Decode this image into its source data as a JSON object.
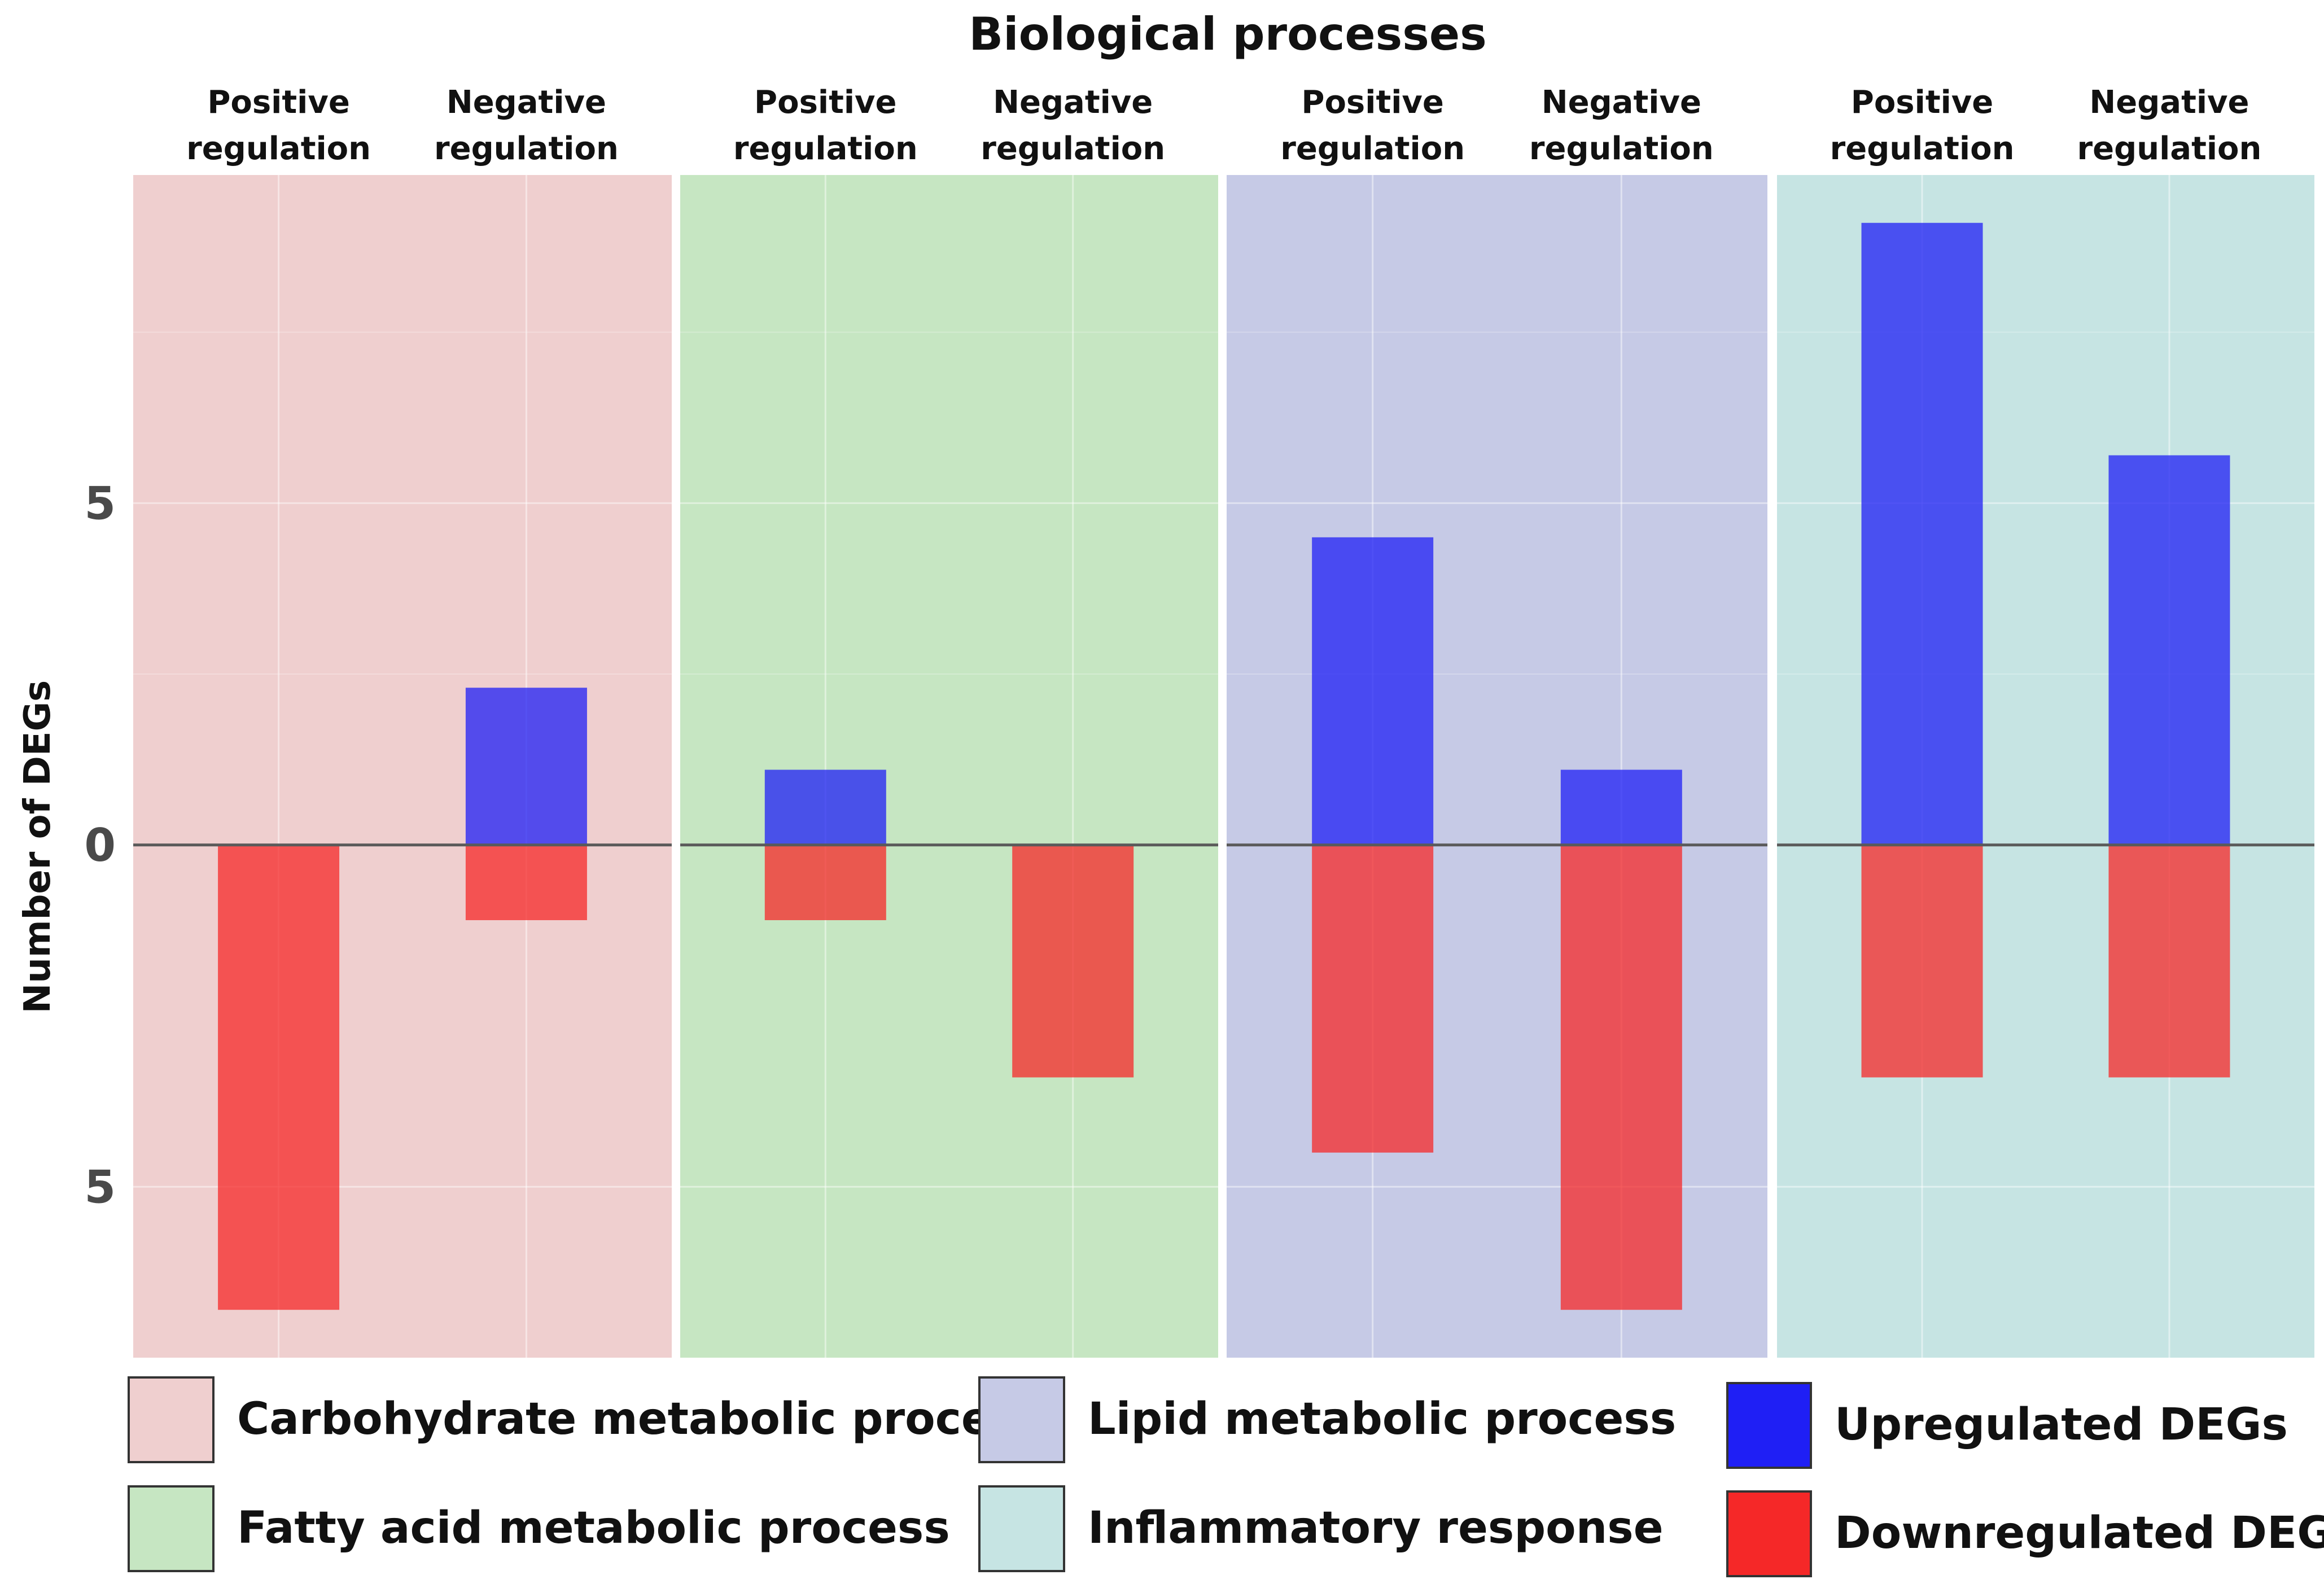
{
  "chart_data": {
    "type": "bar",
    "title": "Biological processes",
    "ylabel": "Number of DEGs",
    "xlabel": "",
    "ylim": [
      -7.5,
      9.8
    ],
    "yticks": [
      {
        "value": 5,
        "label": "5"
      },
      {
        "value": 0,
        "label": "0"
      },
      {
        "value": -5,
        "label": "5"
      }
    ],
    "groups": [
      {
        "name": "Carbohydrate metabolic process",
        "color": "#efcfcf",
        "categories": [
          {
            "line1": "Positive",
            "line2": "regulation",
            "up": 0,
            "down": 6.8
          },
          {
            "line1": "Negative",
            "line2": "regulation",
            "up": 2.3,
            "down": 1.1
          }
        ]
      },
      {
        "name": "Fatty acid metabolic process",
        "color": "#c6e6c2",
        "categories": [
          {
            "line1": "Positive",
            "line2": "regulation",
            "up": 1.1,
            "down": 1.1
          },
          {
            "line1": "Negative",
            "line2": "regulation",
            "up": 0,
            "down": 3.4
          }
        ]
      },
      {
        "name": "Lipid metabolic process",
        "color": "#c6cae6",
        "categories": [
          {
            "line1": "Positive",
            "line2": "regulation",
            "up": 4.5,
            "down": 4.5
          },
          {
            "line1": "Negative",
            "line2": "regulation",
            "up": 1.1,
            "down": 6.8
          }
        ]
      },
      {
        "name": "Inflammatory response",
        "color": "#c6e4e3",
        "categories": [
          {
            "line1": "Positive",
            "line2": "regulation",
            "up": 9.1,
            "down": 3.4
          },
          {
            "line1": "Negative",
            "line2": "regulation",
            "up": 5.7,
            "down": 3.4
          }
        ]
      }
    ],
    "series": [
      {
        "name": "Upregulated DEGs",
        "color": "#1f1ff5"
      },
      {
        "name": "Downregulated DEGs",
        "color": "#f52828"
      }
    ],
    "legend": {
      "position": "bottom",
      "items": [
        {
          "label": "Carbohydrate metabolic process",
          "color": "#efcfcf"
        },
        {
          "label": "Fatty acid metabolic process",
          "color": "#c6e6c2"
        },
        {
          "label": "Lipid metabolic process",
          "color": "#c6cae6"
        },
        {
          "label": "Inflammatory response",
          "color": "#c6e4e3"
        },
        {
          "label": "Upregulated DEGs",
          "color": "#1f1ff5"
        },
        {
          "label": "Downregulated DEGs",
          "color": "#f52828"
        }
      ]
    }
  }
}
